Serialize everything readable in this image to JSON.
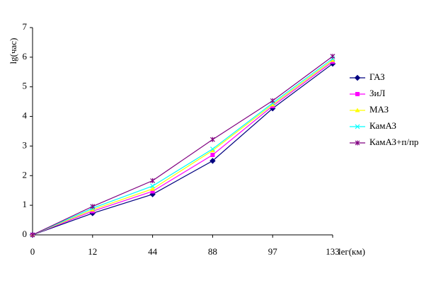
{
  "chart_data": {
    "type": "line",
    "y_label": "lg(час)",
    "x_label": "lег(км)",
    "categories": [
      "0",
      "12",
      "44",
      "88",
      "97",
      "133"
    ],
    "ylim": [
      0,
      7
    ],
    "yticks": [
      0,
      1,
      2,
      3,
      4,
      5,
      6,
      7
    ],
    "grid": false,
    "legend": "right",
    "series": [
      {
        "name": "ГАЗ",
        "color": "#000080",
        "marker": "diamond",
        "values": [
          0,
          0.73,
          1.37,
          2.5,
          4.27,
          5.78
        ]
      },
      {
        "name": "ЗиЛ",
        "color": "#ff00ff",
        "marker": "square",
        "values": [
          0,
          0.8,
          1.47,
          2.7,
          4.35,
          5.85
        ]
      },
      {
        "name": "МАЗ",
        "color": "#ffff00",
        "marker": "triangle",
        "values": [
          0,
          0.85,
          1.55,
          2.85,
          4.4,
          5.9
        ]
      },
      {
        "name": "КамАЗ",
        "color": "#00ffff",
        "marker": "x",
        "values": [
          0,
          0.9,
          1.65,
          2.9,
          4.45,
          5.95
        ]
      },
      {
        "name": "КамАЗ+п/пр",
        "color": "#800080",
        "marker": "star",
        "values": [
          0,
          0.96,
          1.83,
          3.22,
          4.53,
          6.03
        ]
      }
    ]
  }
}
